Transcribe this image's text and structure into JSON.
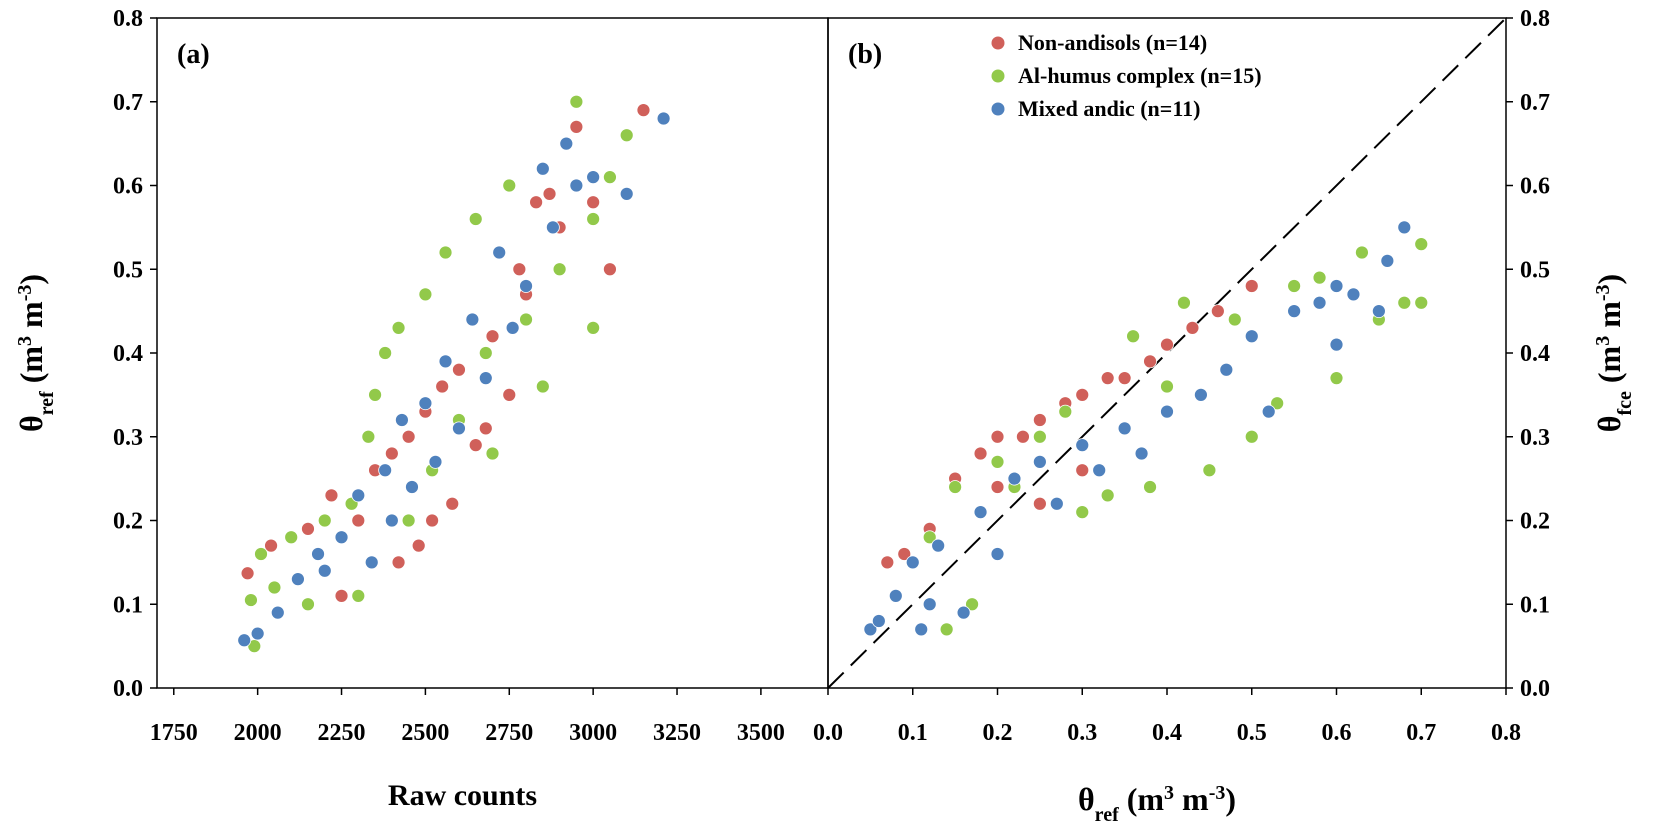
{
  "chart_data": [
    {
      "type": "scatter",
      "panel_label": "(a)",
      "xlabel": "Raw counts",
      "ylabel": [
        "θ",
        "ref",
        " (m",
        "3",
        " m",
        "-3",
        ")"
      ],
      "y_axis_side": "left",
      "xlim": [
        1700,
        3700
      ],
      "xticks": [
        1750,
        2000,
        2250,
        2500,
        2750,
        3000,
        3250,
        3500
      ],
      "ylim": [
        0,
        0.8
      ],
      "yticks": [
        {
          "value": 0,
          "label": "0.0"
        },
        0.1,
        0.2,
        0.3,
        0.4,
        0.5,
        0.6,
        0.7,
        0.8
      ],
      "series": [
        {
          "color": "#d0605a",
          "x": [
            1970,
            2040,
            2150,
            2220,
            2250,
            2300,
            2350,
            2400,
            2420,
            2450,
            2480,
            2500,
            2520,
            2550,
            2580,
            2600,
            2650,
            2680,
            2700,
            2750,
            2780,
            2800,
            2830,
            2870,
            2900,
            2950,
            3000,
            3050,
            3150
          ],
          "values": [
            0.137,
            0.17,
            0.19,
            0.23,
            0.11,
            0.2,
            0.26,
            0.28,
            0.15,
            0.3,
            0.17,
            0.33,
            0.2,
            0.36,
            0.22,
            0.38,
            0.29,
            0.31,
            0.42,
            0.35,
            0.5,
            0.47,
            0.58,
            0.59,
            0.55,
            0.67,
            0.58,
            0.5,
            0.69
          ]
        },
        {
          "color": "#92c94a",
          "x": [
            1980,
            1990,
            2010,
            2050,
            2100,
            2150,
            2200,
            2280,
            2300,
            2330,
            2350,
            2380,
            2420,
            2450,
            2500,
            2520,
            2560,
            2600,
            2650,
            2680,
            2700,
            2750,
            2800,
            2850,
            2900,
            2950,
            3000,
            3000,
            3050,
            3100
          ],
          "values": [
            0.105,
            0.05,
            0.16,
            0.12,
            0.18,
            0.1,
            0.2,
            0.22,
            0.11,
            0.3,
            0.35,
            0.4,
            0.43,
            0.2,
            0.47,
            0.26,
            0.52,
            0.32,
            0.56,
            0.4,
            0.28,
            0.6,
            0.44,
            0.36,
            0.5,
            0.7,
            0.56,
            0.43,
            0.61,
            0.66
          ]
        },
        {
          "color": "#4f81bd",
          "x": [
            1960,
            2000,
            2060,
            2120,
            2180,
            2200,
            2250,
            2300,
            2340,
            2380,
            2400,
            2430,
            2460,
            2500,
            2530,
            2560,
            2600,
            2640,
            2680,
            2720,
            2760,
            2800,
            2850,
            2880,
            2920,
            2950,
            3000,
            3100,
            3210
          ],
          "values": [
            0.057,
            0.065,
            0.09,
            0.13,
            0.16,
            0.14,
            0.18,
            0.23,
            0.15,
            0.26,
            0.2,
            0.32,
            0.24,
            0.34,
            0.27,
            0.39,
            0.31,
            0.44,
            0.37,
            0.52,
            0.43,
            0.48,
            0.62,
            0.55,
            0.65,
            0.6,
            0.61,
            0.59,
            0.68
          ]
        }
      ]
    },
    {
      "type": "scatter",
      "panel_label": "(b)",
      "xlabel": [
        "θ",
        "ref",
        " (m",
        "3",
        " m",
        "-3",
        ")"
      ],
      "ylabel": [
        "θ",
        "fce",
        " (m",
        "3",
        " m",
        "-3",
        ")"
      ],
      "y_axis_side": "right",
      "legend": "upper left",
      "identity_line": true,
      "xlim": [
        0,
        0.8
      ],
      "xticks": [
        {
          "value": 0,
          "label": "0.0"
        },
        0.1,
        0.2,
        0.3,
        0.4,
        0.5,
        0.6,
        0.7,
        0.8
      ],
      "ylim": [
        0,
        0.8
      ],
      "yticks": [
        {
          "value": 0,
          "label": "0.0"
        },
        0.1,
        0.2,
        0.3,
        0.4,
        0.5,
        0.6,
        0.7,
        0.8
      ],
      "series": [
        {
          "name": "Non-andisols (n=14)",
          "color": "#d0605a",
          "x": [
            0.07,
            0.09,
            0.12,
            0.15,
            0.18,
            0.2,
            0.23,
            0.25,
            0.28,
            0.3,
            0.33,
            0.35,
            0.38,
            0.4,
            0.43,
            0.46,
            0.5,
            0.25,
            0.3,
            0.2
          ],
          "values": [
            0.15,
            0.16,
            0.19,
            0.25,
            0.28,
            0.3,
            0.3,
            0.32,
            0.34,
            0.35,
            0.37,
            0.37,
            0.39,
            0.41,
            0.43,
            0.45,
            0.48,
            0.22,
            0.26,
            0.24
          ]
        },
        {
          "name": "Al-humus complex (n=15)",
          "color": "#92c94a",
          "x": [
            0.12,
            0.14,
            0.17,
            0.15,
            0.2,
            0.22,
            0.25,
            0.28,
            0.3,
            0.33,
            0.36,
            0.38,
            0.4,
            0.42,
            0.45,
            0.48,
            0.5,
            0.53,
            0.55,
            0.58,
            0.6,
            0.63,
            0.65,
            0.68,
            0.7,
            0.7
          ],
          "values": [
            0.18,
            0.07,
            0.1,
            0.24,
            0.27,
            0.24,
            0.3,
            0.33,
            0.21,
            0.23,
            0.42,
            0.24,
            0.36,
            0.46,
            0.26,
            0.44,
            0.3,
            0.34,
            0.48,
            0.49,
            0.37,
            0.52,
            0.44,
            0.46,
            0.46,
            0.53
          ]
        },
        {
          "name": "Mixed andic (n=11)",
          "color": "#4f81bd",
          "x": [
            0.05,
            0.06,
            0.08,
            0.1,
            0.11,
            0.12,
            0.13,
            0.16,
            0.18,
            0.2,
            0.22,
            0.25,
            0.27,
            0.3,
            0.32,
            0.35,
            0.37,
            0.4,
            0.44,
            0.47,
            0.5,
            0.52,
            0.55,
            0.58,
            0.6,
            0.6,
            0.62,
            0.65,
            0.66,
            0.68
          ],
          "values": [
            0.07,
            0.08,
            0.11,
            0.15,
            0.07,
            0.1,
            0.17,
            0.09,
            0.21,
            0.16,
            0.25,
            0.27,
            0.22,
            0.29,
            0.26,
            0.31,
            0.28,
            0.33,
            0.35,
            0.38,
            0.42,
            0.33,
            0.45,
            0.46,
            0.48,
            0.41,
            0.47,
            0.45,
            0.51,
            0.55
          ]
        }
      ]
    }
  ]
}
